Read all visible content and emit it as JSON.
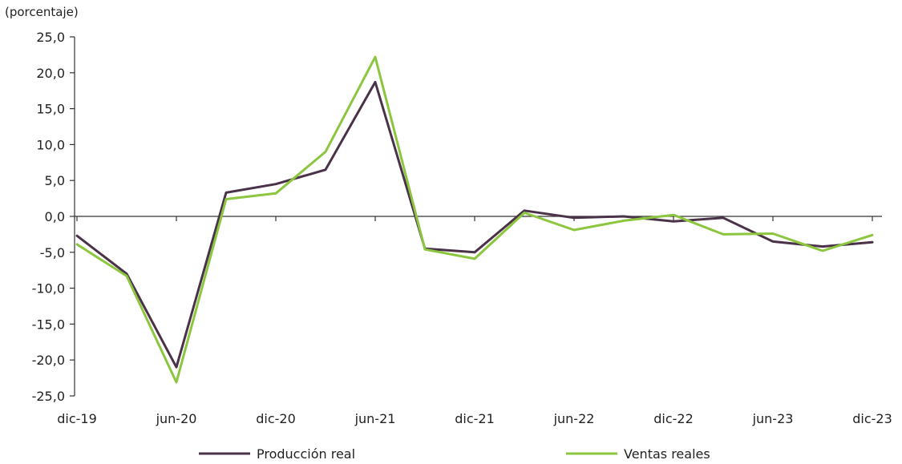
{
  "chart_data": {
    "type": "line",
    "ylabel": "(porcentaje)",
    "ylim": [
      -25,
      25
    ],
    "yticks": [
      "25,0",
      "20,0",
      "15,0",
      "10,0",
      "5,0",
      "0,0",
      "-5,0",
      "-10,0",
      "-15,0",
      "-20,0",
      "-25,0"
    ],
    "ytick_values": [
      25,
      20,
      15,
      10,
      5,
      0,
      -5,
      -10,
      -15,
      -20,
      -25
    ],
    "x": [
      "dic-19",
      "mar-20",
      "jun-20",
      "sep-20",
      "dic-20",
      "mar-21",
      "jun-21",
      "sep-21",
      "dic-21",
      "mar-22",
      "jun-22",
      "sep-22",
      "dic-22",
      "mar-23",
      "jun-23",
      "sep-23",
      "dic-23"
    ],
    "xtick_labels": [
      "dic-19",
      "jun-20",
      "dic-20",
      "jun-21",
      "dic-21",
      "jun-22",
      "dic-22",
      "jun-23",
      "dic-23"
    ],
    "legend_position": "bottom",
    "series": [
      {
        "name": "Producción real",
        "color": "#4a3248",
        "values": [
          -2.7,
          -8.0,
          -21.0,
          3.3,
          4.5,
          6.5,
          18.7,
          -4.5,
          -5.0,
          0.8,
          -0.2,
          0.0,
          -0.7,
          -0.2,
          -3.5,
          -4.2,
          -3.6
        ]
      },
      {
        "name": "Ventas reales",
        "color": "#8cc63f",
        "values": [
          -3.9,
          -8.3,
          -23.1,
          2.4,
          3.2,
          9.0,
          22.2,
          -4.6,
          -5.9,
          0.5,
          -1.9,
          -0.6,
          0.2,
          -2.5,
          -2.4,
          -4.8,
          -2.6
        ]
      }
    ]
  }
}
